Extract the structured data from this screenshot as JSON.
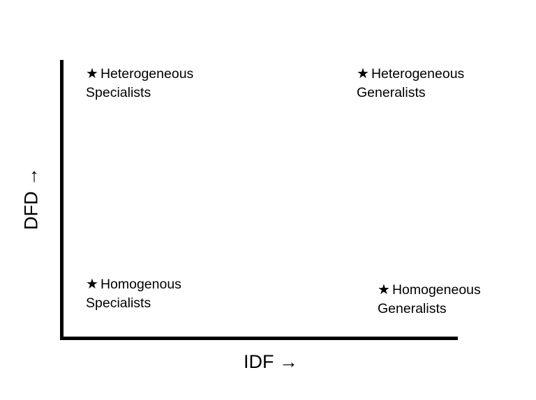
{
  "axes": {
    "x_label": "IDF →",
    "y_label": "DFD →"
  },
  "quadrants": {
    "top_left": {
      "line1": "Heterogeneous",
      "line2": "Specialists"
    },
    "top_right": {
      "line1": "Heterogeneous",
      "line2": "Generalists"
    },
    "bottom_left": {
      "line1": "Homogenous",
      "line2": "Specialists"
    },
    "bottom_right": {
      "line1": "Homogeneous",
      "line2": "Generalists"
    }
  },
  "marker": "★",
  "colors": {
    "axis": "#000000",
    "text": "#000000",
    "background": "#ffffff"
  }
}
